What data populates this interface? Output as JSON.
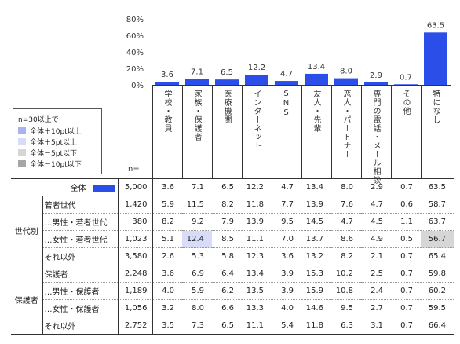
{
  "chart_data": {
    "type": "bar",
    "categories": [
      "学校・教員",
      "家族・保護者",
      "医療機関",
      "インターネット",
      "SNS",
      "友人・先輩",
      "恋人・パートナー",
      "専門の電話・メール相談",
      "その他",
      "特になし"
    ],
    "values": [
      3.6,
      7.1,
      6.5,
      12.2,
      4.7,
      13.4,
      8.0,
      2.9,
      0.7,
      63.5
    ],
    "ylim": [
      0,
      80
    ],
    "yticks": [
      "0%",
      "20%",
      "40%",
      "60%",
      "80%"
    ],
    "bar_color": "#2b4de8"
  },
  "legend": {
    "title": "n=30以上で",
    "items": [
      {
        "label": "全体＋10pt以上",
        "color": "#a9b3f2"
      },
      {
        "label": "全体＋5pt以上",
        "color": "#d9dcf8"
      },
      {
        "label": "全体－5pt以下",
        "color": "#d6d6d6"
      },
      {
        "label": "全体－10pt以下",
        "color": "#a6a6a6"
      }
    ]
  },
  "table": {
    "n_header": "n=",
    "total_row": {
      "label": "全体",
      "n": "5,000",
      "values": [
        "3.6",
        "7.1",
        "6.5",
        "12.2",
        "4.7",
        "13.4",
        "8.0",
        "2.9",
        "0.7",
        "63.5"
      ]
    },
    "groups": [
      {
        "name": "世代別",
        "rows": [
          {
            "label": "若者世代",
            "n": "1,420",
            "values": [
              "5.9",
              "11.5",
              "8.2",
              "11.8",
              "7.7",
              "13.9",
              "7.6",
              "4.7",
              "0.6",
              "58.7"
            ]
          },
          {
            "label": "…男性・若者世代",
            "n": "380",
            "values": [
              "8.2",
              "9.2",
              "7.9",
              "13.9",
              "9.5",
              "14.5",
              "4.7",
              "4.5",
              "1.1",
              "63.7"
            ]
          },
          {
            "label": "…女性・若者世代",
            "n": "1,023",
            "values": [
              "5.1",
              "12.4",
              "8.5",
              "11.1",
              "7.0",
              "13.7",
              "8.6",
              "4.9",
              "0.5",
              "56.7"
            ]
          },
          {
            "label": "それ以外",
            "n": "3,580",
            "values": [
              "2.6",
              "5.3",
              "5.8",
              "12.3",
              "3.6",
              "13.2",
              "8.2",
              "2.1",
              "0.7",
              "65.4"
            ]
          }
        ]
      },
      {
        "name": "保護者",
        "rows": [
          {
            "label": "保護者",
            "n": "2,248",
            "values": [
              "3.6",
              "6.9",
              "6.4",
              "13.4",
              "3.9",
              "15.3",
              "10.2",
              "2.5",
              "0.7",
              "59.8"
            ]
          },
          {
            "label": "…男性・保護者",
            "n": "1,189",
            "values": [
              "4.0",
              "5.9",
              "6.2",
              "13.5",
              "3.9",
              "15.9",
              "10.8",
              "2.4",
              "0.7",
              "60.2"
            ]
          },
          {
            "label": "…女性・保護者",
            "n": "1,056",
            "values": [
              "3.2",
              "8.0",
              "6.6",
              "13.3",
              "4.0",
              "14.6",
              "9.5",
              "2.7",
              "0.7",
              "59.5"
            ]
          },
          {
            "label": "それ以外",
            "n": "2,752",
            "values": [
              "3.5",
              "7.3",
              "6.5",
              "11.1",
              "5.4",
              "11.8",
              "6.3",
              "3.1",
              "0.7",
              "66.4"
            ]
          }
        ]
      }
    ],
    "highlights": [
      {
        "group": 0,
        "row": 2,
        "col": 1,
        "color": "#d9dcf8"
      },
      {
        "group": 0,
        "row": 2,
        "col": 9,
        "color": "#d6d6d6"
      }
    ]
  }
}
